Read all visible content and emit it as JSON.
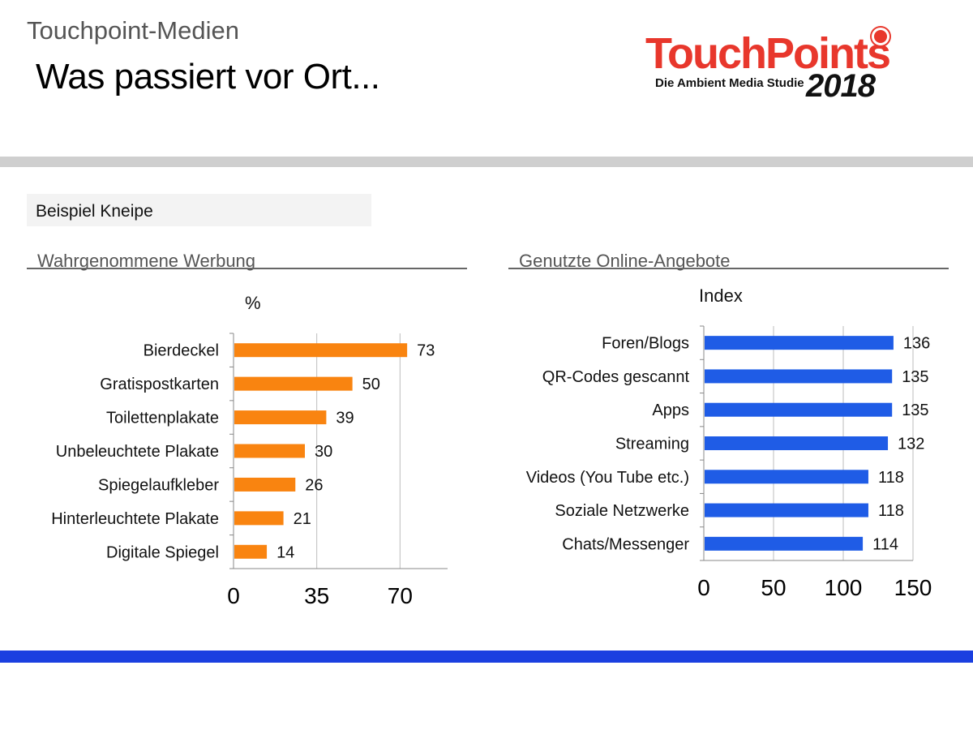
{
  "header": {
    "supertitle": "Touchpoint-Medien",
    "title": "Was passiert vor Ort..."
  },
  "logo": {
    "word": "TouchPoints",
    "subtitle": "Die Ambient Media Studie",
    "year": "2018"
  },
  "example_label": "Beispiel Kneipe",
  "colors": {
    "left_bars": "#f98410",
    "right_bars": "#1f5ce6",
    "logo_red": "#e8372c",
    "bottom_band": "#1a3fe0",
    "top_band": "#cfcfcf"
  },
  "chart_data": [
    {
      "type": "bar",
      "orientation": "horizontal",
      "title": "Wahrgenommene Werbung",
      "unit": "%",
      "categories": [
        "Bierdeckel",
        "Gratispostkarten",
        "Toilettenplakate",
        "Unbeleuchtete Plakate",
        "Spiegelaufkleber",
        "Hinterleuchtete Plakate",
        "Digitale Spiegel"
      ],
      "values": [
        73,
        50,
        39,
        30,
        26,
        21,
        14
      ],
      "xticks": [
        0,
        35,
        70
      ],
      "xlim": [
        0,
        90
      ],
      "grid": true,
      "color": "#f98410"
    },
    {
      "type": "bar",
      "orientation": "horizontal",
      "title": "Genutzte Online-Angebote",
      "unit": "Index",
      "categories": [
        "Foren/Blogs",
        "QR-Codes gescannt",
        "Apps",
        "Streaming",
        "Videos (You Tube etc.)",
        "Soziale Netzwerke",
        "Chats/Messenger"
      ],
      "values": [
        136,
        135,
        135,
        132,
        118,
        118,
        114
      ],
      "xticks": [
        0,
        50,
        100,
        150
      ],
      "xlim": [
        0,
        150
      ],
      "grid": true,
      "color": "#1f5ce6"
    }
  ]
}
